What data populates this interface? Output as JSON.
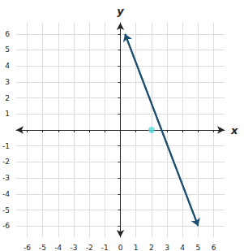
{
  "chart_data": {
    "type": "line",
    "xlabel": "x",
    "ylabel": "y",
    "xlim": [
      -6.7,
      6.7
    ],
    "ylim": [
      -6.7,
      6.7
    ],
    "xticks": [
      -6,
      -5,
      -4,
      -3,
      -2,
      -1,
      0,
      1,
      2,
      3,
      4,
      5,
      6
    ],
    "yticks": [
      -6,
      -5,
      -4,
      -3,
      -2,
      -1,
      1,
      2,
      3,
      4,
      5,
      6
    ],
    "grid": true,
    "series": [
      {
        "type": "line",
        "color": "#1b4f72",
        "marker": "arrow",
        "x": [
          0.3,
          5.0
        ],
        "values": [
          6.0,
          -6.0
        ]
      },
      {
        "type": "scatter",
        "color": "#5ddbdb",
        "x": [
          2
        ],
        "values": [
          0
        ]
      }
    ]
  }
}
